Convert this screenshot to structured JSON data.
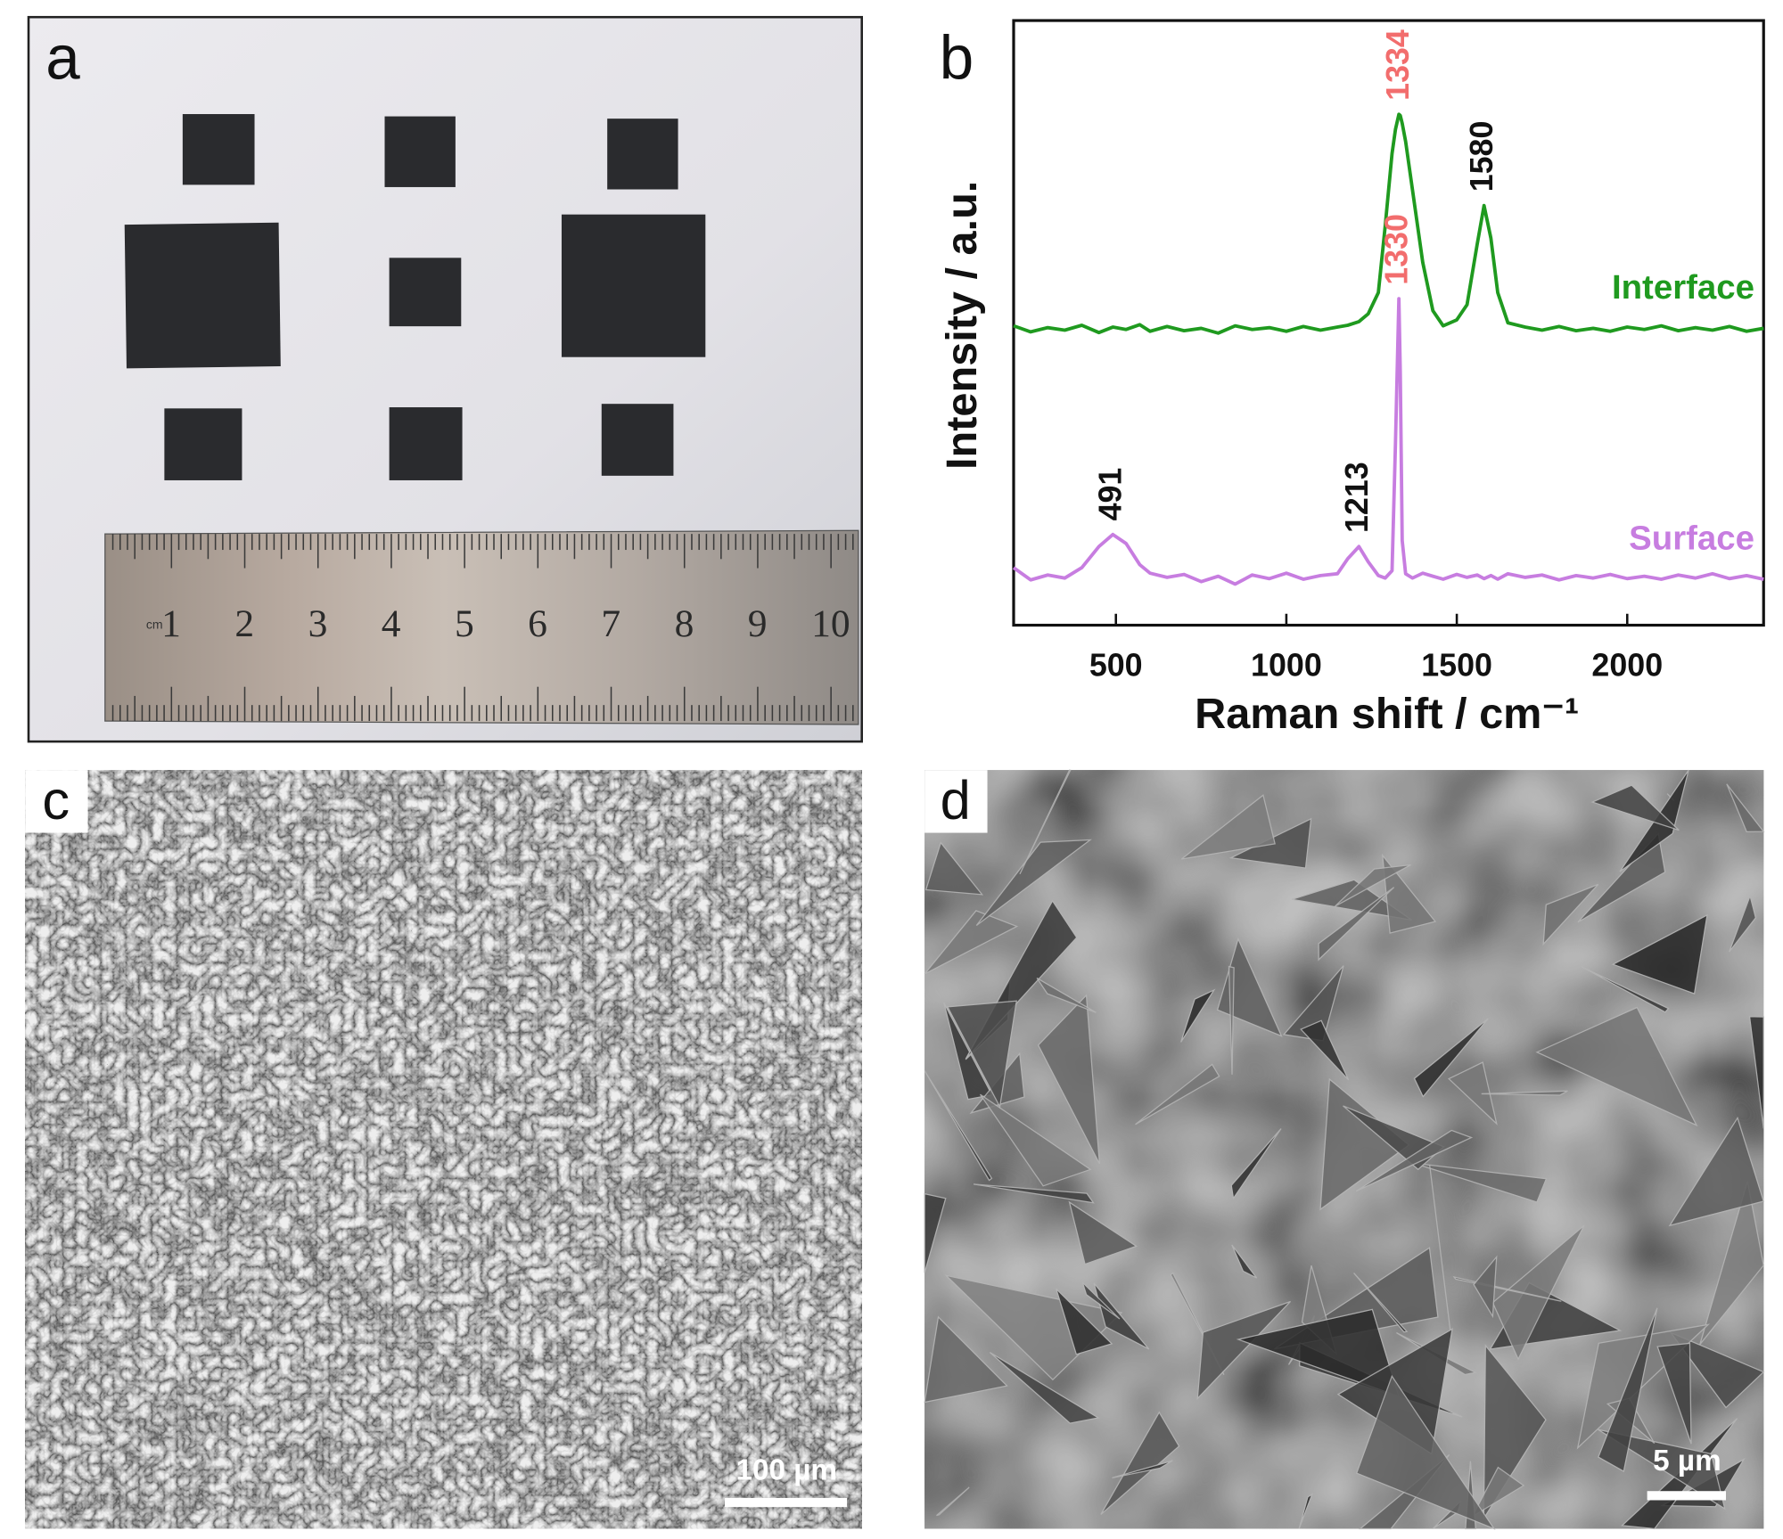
{
  "panel_a": {
    "label": "a",
    "ruler": {
      "unit": "cm",
      "numbers": [
        "1",
        "2",
        "3",
        "4",
        "5",
        "6",
        "7",
        "8",
        "9",
        "10"
      ]
    }
  },
  "chart_data": {
    "type": "line",
    "label": "b",
    "xlabel": "Raman shift / cm⁻¹",
    "ylabel": "Intensity / a.u.",
    "xlim": [
      200,
      2400
    ],
    "xticks": [
      500,
      1000,
      1500,
      2000
    ],
    "ylim": [
      0,
      100
    ],
    "x": [
      200,
      250,
      300,
      350,
      400,
      450,
      491,
      530,
      570,
      600,
      650,
      700,
      750,
      800,
      850,
      900,
      950,
      1000,
      1050,
      1100,
      1150,
      1180,
      1213,
      1240,
      1270,
      1290,
      1310,
      1320,
      1330,
      1334,
      1340,
      1350,
      1370,
      1400,
      1430,
      1460,
      1500,
      1530,
      1560,
      1580,
      1600,
      1620,
      1650,
      1700,
      1750,
      1800,
      1850,
      1900,
      1950,
      2000,
      2050,
      2100,
      2150,
      2200,
      2250,
      2300,
      2350,
      2400
    ],
    "series": [
      {
        "name": "Interface",
        "color": "#1f9a1f",
        "peak_labels": [
          {
            "text": "1334",
            "color": "#f26d6d"
          },
          {
            "text": "1580",
            "color": "#111111"
          }
        ],
        "values": [
          49.5,
          48.5,
          49.2,
          48.8,
          49.6,
          48.4,
          49.3,
          48.9,
          49.7,
          48.6,
          49.4,
          48.7,
          49.1,
          48.3,
          49.5,
          48.9,
          49.2,
          48.6,
          49.4,
          48.8,
          49.3,
          49.6,
          50.2,
          51.5,
          55,
          66,
          78,
          82,
          84.5,
          84.3,
          83,
          80,
          72,
          60,
          52,
          49.5,
          50.5,
          53,
          63,
          69.4,
          64,
          55,
          50,
          49.3,
          48.8,
          49.4,
          48.7,
          49.1,
          48.6,
          49.3,
          48.9,
          49.5,
          48.7,
          49.2,
          48.8,
          49.4,
          48.6,
          49.1
        ]
      },
      {
        "name": "Surface",
        "color": "#c77de0",
        "peak_labels": [
          {
            "text": "1330",
            "color": "#f26d6d"
          },
          {
            "text": "491",
            "color": "#111111"
          },
          {
            "text": "1213",
            "color": "#111111"
          }
        ],
        "values": [
          9.5,
          7.5,
          8.3,
          7.8,
          9.5,
          13,
          15,
          13.5,
          10,
          8.6,
          7.9,
          8.4,
          7.2,
          8.1,
          6.8,
          8.3,
          7.7,
          8.6,
          7.6,
          8.2,
          8.5,
          11,
          13,
          10.5,
          8.2,
          7.8,
          9,
          30,
          54,
          42,
          14,
          8.5,
          7.8,
          8.6,
          8.1,
          7.6,
          8.4,
          7.9,
          8.3,
          7.7,
          8.2,
          7.6,
          8.5,
          7.9,
          8.3,
          7.5,
          8.2,
          7.8,
          8.4,
          7.7,
          8.1,
          7.6,
          8.3,
          7.8,
          8.5,
          7.7,
          8.2,
          7.6
        ]
      }
    ]
  },
  "panel_c": {
    "label": "c",
    "scale_bar": "100 µm"
  },
  "panel_d": {
    "label": "d",
    "scale_bar": "5 µm"
  }
}
